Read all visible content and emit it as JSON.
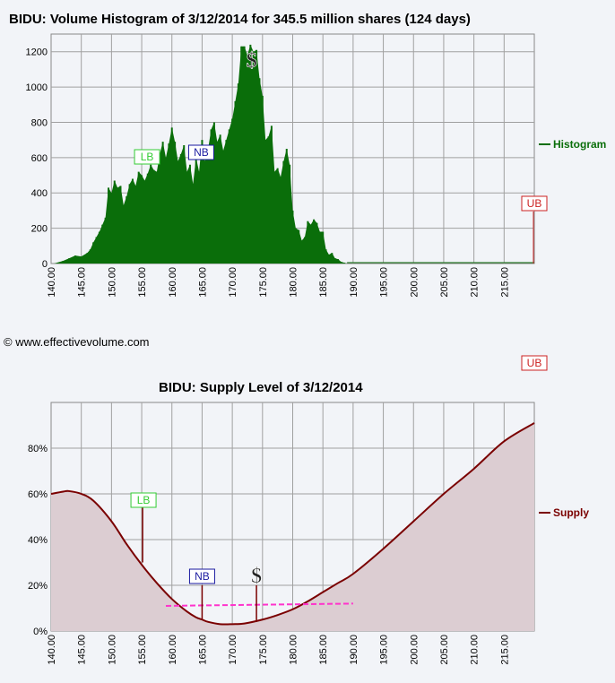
{
  "colors": {
    "histogram": "#0a6e0a",
    "supply_line": "#7a0000",
    "supply_fill": "#dccdd2",
    "trend": "#ff33cc",
    "lb": "#33cc33",
    "nb": "#1a1aa0",
    "ub": "#cc2222",
    "grid": "#a0a0a0",
    "background": "#f2f4f8"
  },
  "credit": "© www.effectivevolume.com",
  "dollar_symbol": "$",
  "chart_data": [
    {
      "type": "area",
      "title": "BIDU: Volume Histogram of 3/12/2014 for 345.5 million shares (124 days)",
      "xlabel": "",
      "ylabel": "",
      "xlim": [
        140,
        220
      ],
      "ylim": [
        0,
        1300
      ],
      "x_ticks": [
        "140.00",
        "145.00",
        "150.00",
        "155.00",
        "160.00",
        "165.00",
        "170.00",
        "175.00",
        "180.00",
        "185.00",
        "190.00",
        "195.00",
        "200.00",
        "205.00",
        "210.00",
        "215.00"
      ],
      "y_ticks": [
        "0",
        "200",
        "400",
        "600",
        "800",
        "1000",
        "1200"
      ],
      "grid": true,
      "legend": "right",
      "series": [
        {
          "name": "Histogram",
          "x": [
            140.5,
            142,
            143,
            144,
            145,
            146,
            146.5,
            147,
            147.5,
            148,
            148.5,
            149,
            149.5,
            150,
            150.5,
            151,
            151.5,
            152,
            152.5,
            153,
            153.5,
            154,
            154.5,
            155,
            155.5,
            156,
            156.5,
            157,
            157.5,
            158,
            158.5,
            159,
            159.5,
            160,
            160.5,
            161,
            161.5,
            162,
            162.5,
            163,
            163.5,
            164,
            164.5,
            165,
            165.5,
            166,
            166.5,
            167,
            167.5,
            168,
            168.5,
            169,
            169.5,
            170,
            170.5,
            171,
            171.5,
            172,
            172.5,
            173,
            173.5,
            174,
            174.5,
            175,
            175.5,
            176,
            176.5,
            177,
            177.5,
            178,
            178.5,
            179,
            179.5,
            180,
            180.5,
            181,
            181.5,
            182,
            182.5,
            183,
            183.5,
            184,
            184.5,
            185,
            185.5,
            186,
            186.5,
            187,
            187.5,
            188,
            188.5,
            189
          ],
          "y": [
            0,
            15,
            30,
            45,
            40,
            60,
            80,
            120,
            150,
            180,
            220,
            260,
            430,
            400,
            470,
            430,
            440,
            330,
            380,
            450,
            480,
            440,
            520,
            500,
            470,
            510,
            560,
            530,
            520,
            620,
            690,
            600,
            680,
            770,
            690,
            580,
            620,
            670,
            520,
            560,
            450,
            600,
            520,
            700,
            580,
            650,
            760,
            800,
            690,
            730,
            640,
            700,
            760,
            820,
            920,
            1020,
            1230,
            1230,
            1180,
            1240,
            1200,
            1210,
            1050,
            950,
            700,
            720,
            780,
            520,
            540,
            490,
            580,
            650,
            560,
            300,
            200,
            190,
            130,
            150,
            240,
            220,
            250,
            230,
            180,
            180,
            80,
            50,
            60,
            30,
            25,
            10,
            5,
            0
          ]
        }
      ],
      "markers": [
        {
          "label": "LB",
          "x": 155
        },
        {
          "label": "NB",
          "x": 165
        },
        {
          "label": "$",
          "x": 173.5
        },
        {
          "label": "UB",
          "x": 220
        }
      ]
    },
    {
      "type": "area",
      "title": "BIDU: Supply Level of 3/12/2014",
      "xlabel": "",
      "ylabel": "",
      "xlim": [
        140,
        220
      ],
      "ylim": [
        0,
        100
      ],
      "x_ticks": [
        "140.00",
        "145.00",
        "150.00",
        "155.00",
        "160.00",
        "165.00",
        "170.00",
        "175.00",
        "180.00",
        "185.00",
        "190.00",
        "195.00",
        "200.00",
        "205.00",
        "210.00",
        "215.00"
      ],
      "y_ticks": [
        "0%",
        "20%",
        "40%",
        "60%",
        "80%"
      ],
      "grid": true,
      "legend": "right",
      "series": [
        {
          "name": "Supply",
          "x": [
            140,
            142,
            143,
            145,
            147,
            150,
            152.5,
            155,
            157.5,
            160,
            162.5,
            164,
            165,
            166,
            168,
            170,
            172,
            175,
            177.5,
            180,
            182.5,
            185,
            187.5,
            190,
            195,
            200,
            205,
            210,
            215,
            220
          ],
          "y": [
            60,
            61,
            61.2,
            60,
            57,
            48,
            38,
            29,
            21,
            14,
            8.5,
            6,
            5,
            4,
            3,
            3,
            3.3,
            5,
            7,
            9.5,
            13,
            17,
            21,
            25,
            36,
            48,
            60,
            71,
            83,
            91
          ]
        }
      ],
      "trend_line": {
        "x": [
          159,
          190
        ],
        "y": [
          11,
          12
        ]
      },
      "markers": [
        {
          "label": "LB",
          "x": 155,
          "y_top": 56,
          "y_bottom": 30
        },
        {
          "label": "NB",
          "x": 165,
          "y_top": 20,
          "y_bottom": 5
        },
        {
          "label": "$",
          "x": 174,
          "y_top": 20,
          "y_bottom": 4
        },
        {
          "label": "UB",
          "x": 220
        }
      ]
    }
  ]
}
